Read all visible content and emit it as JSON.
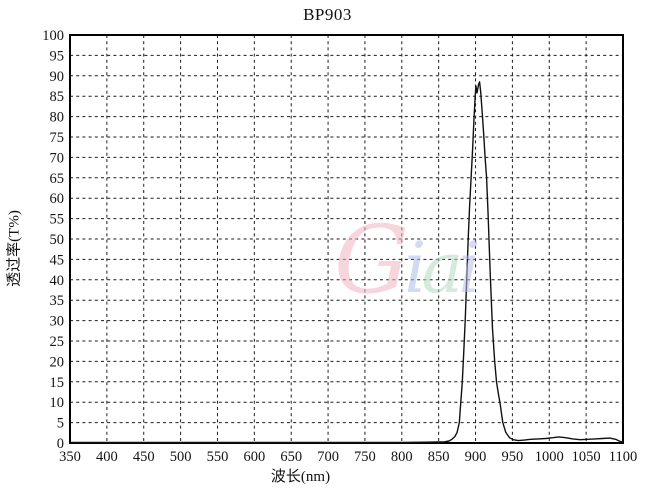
{
  "window": {
    "title": "BP903 transmittance spectrum chart"
  },
  "chart_data": {
    "type": "line",
    "title": "BP903",
    "xlabel": "波长(nm)",
    "ylabel": "透过率(T%)",
    "xlim": [
      350,
      1100
    ],
    "ylim": [
      0,
      100
    ],
    "x_ticks": [
      350,
      400,
      450,
      500,
      550,
      600,
      650,
      700,
      750,
      800,
      850,
      900,
      950,
      1000,
      1050,
      1100
    ],
    "y_ticks": [
      0,
      5,
      10,
      15,
      20,
      25,
      30,
      35,
      40,
      45,
      50,
      55,
      60,
      65,
      70,
      75,
      80,
      85,
      90,
      95,
      100
    ],
    "grid": "dashed-both-axes",
    "legend_position": "none",
    "series": [
      {
        "name": "transmittance",
        "color": "#111111",
        "points": [
          [
            350,
            0.15
          ],
          [
            400,
            0.15
          ],
          [
            450,
            0.15
          ],
          [
            500,
            0.15
          ],
          [
            550,
            0.15
          ],
          [
            600,
            0.15
          ],
          [
            650,
            0.15
          ],
          [
            700,
            0.15
          ],
          [
            750,
            0.15
          ],
          [
            800,
            0.15
          ],
          [
            830,
            0.2
          ],
          [
            850,
            0.25
          ],
          [
            858,
            0.3
          ],
          [
            864,
            0.5
          ],
          [
            868,
            0.9
          ],
          [
            872,
            1.6
          ],
          [
            875,
            2.6
          ],
          [
            878,
            5
          ],
          [
            880,
            10
          ],
          [
            882,
            15
          ],
          [
            884,
            22
          ],
          [
            886,
            30
          ],
          [
            888,
            40
          ],
          [
            890,
            50
          ],
          [
            892,
            58
          ],
          [
            894,
            65
          ],
          [
            896,
            72
          ],
          [
            898,
            80
          ],
          [
            899.5,
            85
          ],
          [
            900.5,
            87.5
          ],
          [
            902,
            85.8
          ],
          [
            904,
            87.8
          ],
          [
            905.5,
            88.5
          ],
          [
            907,
            86
          ],
          [
            909,
            81
          ],
          [
            911,
            76
          ],
          [
            913,
            70
          ],
          [
            915,
            65
          ],
          [
            917,
            56
          ],
          [
            920,
            41
          ],
          [
            923,
            28
          ],
          [
            926,
            20
          ],
          [
            928.5,
            15
          ],
          [
            931,
            12
          ],
          [
            933,
            10
          ],
          [
            937,
            5
          ],
          [
            941,
            2.6
          ],
          [
            946,
            1.3
          ],
          [
            951,
            0.8
          ],
          [
            958,
            0.6
          ],
          [
            966,
            0.7
          ],
          [
            975,
            0.9
          ],
          [
            985,
            1.0
          ],
          [
            995,
            1.1
          ],
          [
            1005,
            1.3
          ],
          [
            1013,
            1.5
          ],
          [
            1022,
            1.3
          ],
          [
            1032,
            1.0
          ],
          [
            1042,
            0.8
          ],
          [
            1052,
            0.9
          ],
          [
            1062,
            1.0
          ],
          [
            1072,
            1.1
          ],
          [
            1082,
            1.2
          ],
          [
            1090,
            0.9
          ],
          [
            1096,
            0.4
          ],
          [
            1100,
            0.3
          ]
        ]
      }
    ],
    "peak_annotation": "peak ~88.5% near 905 nm"
  },
  "watermark": {
    "text": "Giai",
    "letters": [
      {
        "char": "G",
        "color": "#f0b4c0"
      },
      {
        "char": "i",
        "color": "#aebde9"
      },
      {
        "char": "a",
        "color": "#b3d8c0"
      },
      {
        "char": "i",
        "color": "#b9bce6"
      }
    ]
  },
  "colors": {
    "line": "#111111",
    "grid": "#1c1c1c",
    "border": "#000000",
    "text": "#141414",
    "background": "#ffffff"
  }
}
